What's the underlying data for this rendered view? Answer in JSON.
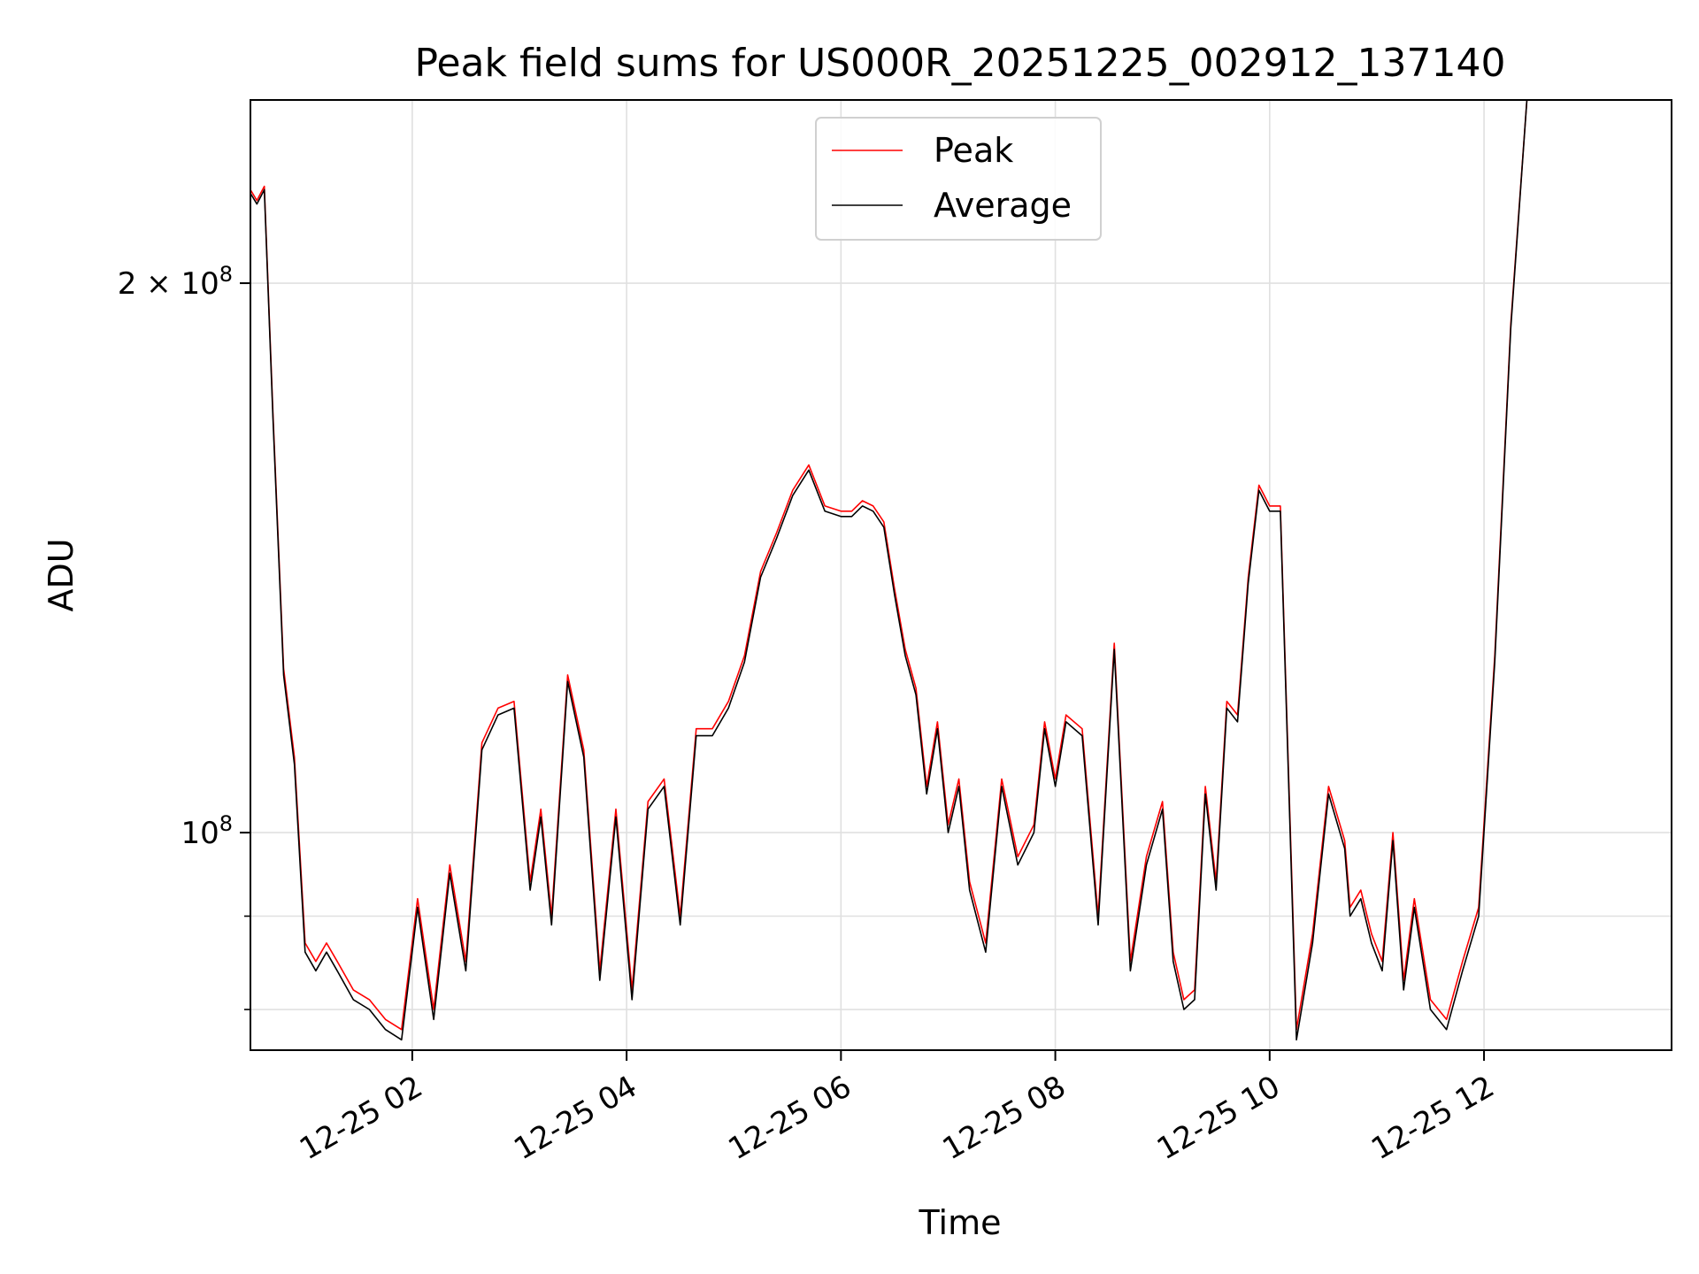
{
  "chart_data": {
    "type": "line",
    "title": "Peak field sums for US000R_20251225_002912_137140",
    "xlabel": "Time",
    "ylabel": "ADU",
    "x_axis": "time",
    "x_start": "12-25 00:29",
    "x_end": "12-25 13:45",
    "xticks": [
      "12-25 02",
      "12-25 04",
      "12-25 06",
      "12-25 08",
      "12-25 10",
      "12-25 12"
    ],
    "xtick_hours": [
      2,
      4,
      6,
      8,
      10,
      12
    ],
    "y_scale": "log",
    "ylim": [
      76000000,
      252000000
    ],
    "yticks_major": [
      {
        "value": 100000000,
        "label_base": "10",
        "label_exp": "8"
      },
      {
        "value": 200000000,
        "label_base": "2 × 10",
        "label_exp": "8"
      }
    ],
    "yticks_minor": [
      80000000,
      90000000
    ],
    "grid": true,
    "legend": {
      "position": "top-center",
      "entries": [
        "Peak",
        "Average"
      ]
    },
    "series": [
      {
        "name": "Peak",
        "color": "#ff0000",
        "x_hours": [
          0.49,
          0.55,
          0.62,
          0.7,
          0.8,
          0.9,
          1.0,
          1.1,
          1.2,
          1.3,
          1.45,
          1.6,
          1.75,
          1.9,
          2.05,
          2.2,
          2.35,
          2.5,
          2.65,
          2.8,
          2.95,
          3.1,
          3.2,
          3.3,
          3.45,
          3.6,
          3.75,
          3.9,
          4.05,
          4.2,
          4.35,
          4.5,
          4.65,
          4.8,
          4.95,
          5.1,
          5.25,
          5.4,
          5.55,
          5.7,
          5.85,
          6.0,
          6.1,
          6.2,
          6.3,
          6.4,
          6.5,
          6.6,
          6.7,
          6.8,
          6.9,
          7.0,
          7.1,
          7.2,
          7.35,
          7.5,
          7.65,
          7.8,
          7.9,
          8.0,
          8.1,
          8.25,
          8.4,
          8.55,
          8.7,
          8.85,
          9.0,
          9.1,
          9.2,
          9.3,
          9.4,
          9.5,
          9.6,
          9.7,
          9.8,
          9.9,
          10.0,
          10.1,
          10.25,
          10.4,
          10.55,
          10.7,
          10.75,
          10.85,
          10.95,
          11.05,
          11.15,
          11.25,
          11.35,
          11.5,
          11.65,
          11.8,
          11.95,
          12.1,
          12.25,
          12.4,
          12.55,
          12.7,
          12.85,
          13.0,
          13.15,
          13.3,
          13.45,
          13.6,
          13.7
        ],
        "values": [
          225000000,
          222000000,
          226000000,
          170000000,
          123000000,
          110000000,
          87000000,
          85000000,
          87000000,
          85000000,
          82000000,
          81000000,
          79000000,
          78000000,
          92000000,
          80000000,
          96000000,
          85000000,
          112000000,
          117000000,
          118000000,
          94000000,
          103000000,
          90000000,
          122000000,
          111000000,
          84000000,
          103000000,
          82000000,
          104000000,
          107000000,
          90000000,
          114000000,
          114000000,
          118000000,
          125000000,
          139000000,
          146000000,
          154000000,
          159000000,
          151000000,
          150000000,
          150000000,
          152000000,
          151000000,
          148000000,
          136000000,
          126000000,
          120000000,
          106000000,
          115000000,
          101000000,
          107000000,
          94000000,
          87000000,
          107000000,
          97000000,
          101000000,
          115000000,
          107000000,
          116000000,
          114000000,
          90000000,
          127000000,
          85000000,
          97000000,
          104000000,
          86000000,
          81000000,
          82000000,
          106000000,
          94000000,
          118000000,
          116000000,
          138000000,
          155000000,
          151000000,
          151000000,
          78000000,
          88000000,
          106000000,
          99000000,
          91000000,
          93000000,
          88000000,
          85000000,
          100000000,
          83000000,
          92000000,
          81000000,
          79000000,
          85000000,
          91000000,
          125000000,
          190000000,
          252000000,
          252000000,
          252000000,
          252000000,
          252000000,
          252000000,
          252000000,
          252000000,
          252000000,
          252000000
        ]
      },
      {
        "name": "Average",
        "color": "#000000",
        "x_hours": [
          0.49,
          0.55,
          0.62,
          0.7,
          0.8,
          0.9,
          1.0,
          1.1,
          1.2,
          1.3,
          1.45,
          1.6,
          1.75,
          1.9,
          2.05,
          2.2,
          2.35,
          2.5,
          2.65,
          2.8,
          2.95,
          3.1,
          3.2,
          3.3,
          3.45,
          3.6,
          3.75,
          3.9,
          4.05,
          4.2,
          4.35,
          4.5,
          4.65,
          4.8,
          4.95,
          5.1,
          5.25,
          5.4,
          5.55,
          5.7,
          5.85,
          6.0,
          6.1,
          6.2,
          6.3,
          6.4,
          6.5,
          6.6,
          6.7,
          6.8,
          6.9,
          7.0,
          7.1,
          7.2,
          7.35,
          7.5,
          7.65,
          7.8,
          7.9,
          8.0,
          8.1,
          8.25,
          8.4,
          8.55,
          8.7,
          8.85,
          9.0,
          9.1,
          9.2,
          9.3,
          9.4,
          9.5,
          9.6,
          9.7,
          9.8,
          9.9,
          10.0,
          10.1,
          10.25,
          10.4,
          10.55,
          10.7,
          10.75,
          10.85,
          10.95,
          11.05,
          11.15,
          11.25,
          11.35,
          11.5,
          11.65,
          11.8,
          11.95,
          12.1,
          12.25,
          12.4,
          12.55,
          12.7,
          12.85,
          13.0,
          13.15,
          13.3,
          13.45,
          13.6,
          13.7
        ],
        "values": [
          224000000,
          221000000,
          225000000,
          169000000,
          122000000,
          109000000,
          86000000,
          84000000,
          86000000,
          84000000,
          81000000,
          80000000,
          78000000,
          77000000,
          91000000,
          79000000,
          95000000,
          84000000,
          111000000,
          116000000,
          117000000,
          93000000,
          102000000,
          89000000,
          121000000,
          110000000,
          83000000,
          102000000,
          81000000,
          103000000,
          106000000,
          89000000,
          113000000,
          113000000,
          117000000,
          124000000,
          138000000,
          145000000,
          153000000,
          158000000,
          150000000,
          149000000,
          149000000,
          151000000,
          150000000,
          147000000,
          135000000,
          125000000,
          119000000,
          105000000,
          114000000,
          100000000,
          106000000,
          93000000,
          86000000,
          106000000,
          96000000,
          100000000,
          114000000,
          106000000,
          115000000,
          113000000,
          89000000,
          126000000,
          84000000,
          96000000,
          103000000,
          85000000,
          80000000,
          81000000,
          105000000,
          93000000,
          117000000,
          115000000,
          137000000,
          154000000,
          150000000,
          150000000,
          77000000,
          87000000,
          105000000,
          98000000,
          90000000,
          92000000,
          87000000,
          84000000,
          99000000,
          82000000,
          91000000,
          80000000,
          78000000,
          84000000,
          90000000,
          124000000,
          189000000,
          252000000,
          252000000,
          252000000,
          252000000,
          252000000,
          252000000,
          252000000,
          252000000,
          252000000,
          252000000
        ]
      }
    ]
  }
}
